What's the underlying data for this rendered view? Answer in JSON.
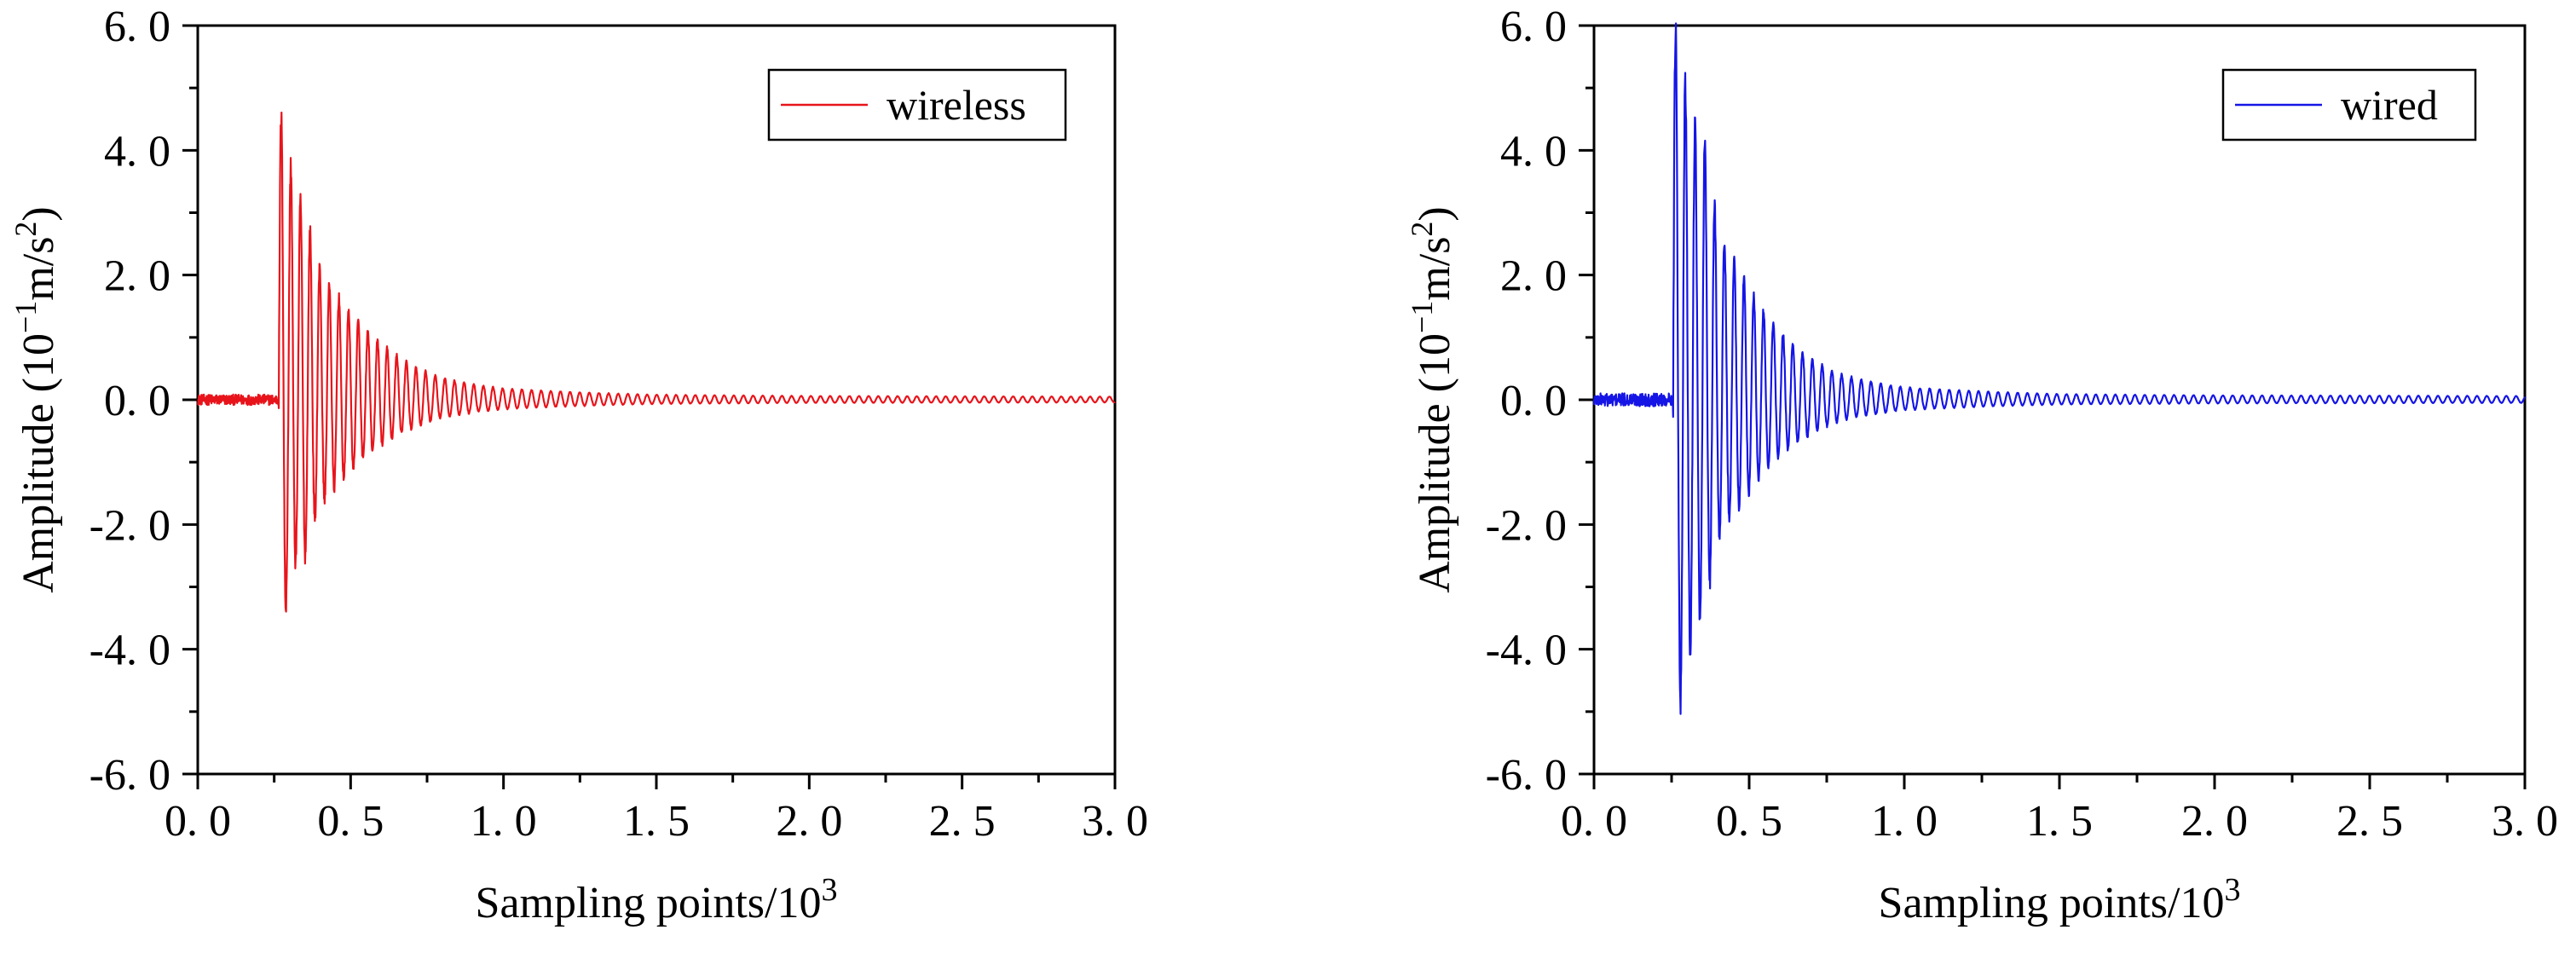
{
  "figure": {
    "panels_count": 2
  },
  "chart_data": [
    {
      "type": "line",
      "panel": "left",
      "title": "",
      "xlabel": "Sampling points/10",
      "xlabel_sup": "3",
      "ylabel_prefix": "Amplitude (10",
      "ylabel_sup1": "−1",
      "ylabel_mid": "m/s",
      "ylabel_sup2": "2",
      "ylabel_suffix": ")",
      "xlim": [
        0.0,
        3.0
      ],
      "ylim": [
        -6.0,
        6.0
      ],
      "xticks": [
        0.0,
        0.5,
        1.0,
        1.5,
        2.0,
        2.5,
        3.0
      ],
      "xtick_labels": [
        "0. 0",
        "0. 5",
        "1. 0",
        "1. 5",
        "2. 0",
        "2. 5",
        "3. 0"
      ],
      "yticks": [
        -6.0,
        -4.0,
        -2.0,
        0.0,
        2.0,
        4.0,
        6.0
      ],
      "ytick_labels": [
        "-6. 0",
        "-4. 0",
        "-2. 0",
        "0. 0",
        "2. 0",
        "4. 0",
        "6. 0"
      ],
      "legend": {
        "label": "wireless",
        "position": "top-right"
      },
      "grid": false,
      "series": [
        {
          "name": "wireless",
          "color": "#e8141b",
          "signal": {
            "pre_trigger_noise_amplitude": 0.12,
            "onset_x": 0.265,
            "peaks": [
              {
                "x": 0.285,
                "y": 4.55
              },
              {
                "x": 0.29,
                "y": -3.8
              },
              {
                "x": 0.31,
                "y": 3.75
              },
              {
                "x": 0.32,
                "y": -3.15
              },
              {
                "x": 0.345,
                "y": 3.2
              },
              {
                "x": 0.4,
                "y": 2.1
              },
              {
                "x": 0.5,
                "y": 1.4
              },
              {
                "x": 0.6,
                "y": 0.9
              },
              {
                "x": 0.8,
                "y": 0.35
              },
              {
                "x": 1.0,
                "y": 0.18
              },
              {
                "x": 1.5,
                "y": 0.08
              },
              {
                "x": 2.0,
                "y": 0.06
              },
              {
                "x": 3.0,
                "y": 0.05
              }
            ],
            "oscillation_period_x": 0.0315
          }
        }
      ]
    },
    {
      "type": "line",
      "panel": "right",
      "title": "",
      "xlabel": "Sampling points/10",
      "xlabel_sup": "3",
      "ylabel_prefix": "Amplitude (10",
      "ylabel_sup1": "−1",
      "ylabel_mid": "m/s",
      "ylabel_sup2": "2",
      "ylabel_suffix": ")",
      "xlim": [
        0.0,
        3.0
      ],
      "ylim": [
        -6.0,
        6.0
      ],
      "xticks": [
        0.0,
        0.5,
        1.0,
        1.5,
        2.0,
        2.5,
        3.0
      ],
      "xtick_labels": [
        "0. 0",
        "0. 5",
        "1. 0",
        "1. 5",
        "2. 0",
        "2. 5",
        "3. 0"
      ],
      "yticks": [
        -6.0,
        -4.0,
        -2.0,
        0.0,
        2.0,
        4.0,
        6.0
      ],
      "ytick_labels": [
        "-6. 0",
        "-4. 0",
        "-2. 0",
        "0. 0",
        "2. 0",
        "4. 0",
        "6. 0"
      ],
      "legend": {
        "label": "wired",
        "position": "top-right"
      },
      "grid": false,
      "series": [
        {
          "name": "wired",
          "color": "#1515e6",
          "signal": {
            "pre_trigger_noise_amplitude": 0.15,
            "onset_x": 0.255,
            "peaks": [
              {
                "x": 0.285,
                "y": 5.95
              },
              {
                "x": 0.295,
                "y": -4.95
              },
              {
                "x": 0.32,
                "y": 4.9
              },
              {
                "x": 0.33,
                "y": -4.15
              },
              {
                "x": 0.35,
                "y": 4.5
              },
              {
                "x": 0.4,
                "y": 2.8
              },
              {
                "x": 0.5,
                "y": 1.8
              },
              {
                "x": 0.6,
                "y": 1.1
              },
              {
                "x": 0.8,
                "y": 0.4
              },
              {
                "x": 1.0,
                "y": 0.2
              },
              {
                "x": 1.5,
                "y": 0.09
              },
              {
                "x": 2.0,
                "y": 0.07
              },
              {
                "x": 3.0,
                "y": 0.06
              }
            ],
            "oscillation_period_x": 0.0315
          }
        }
      ]
    }
  ]
}
